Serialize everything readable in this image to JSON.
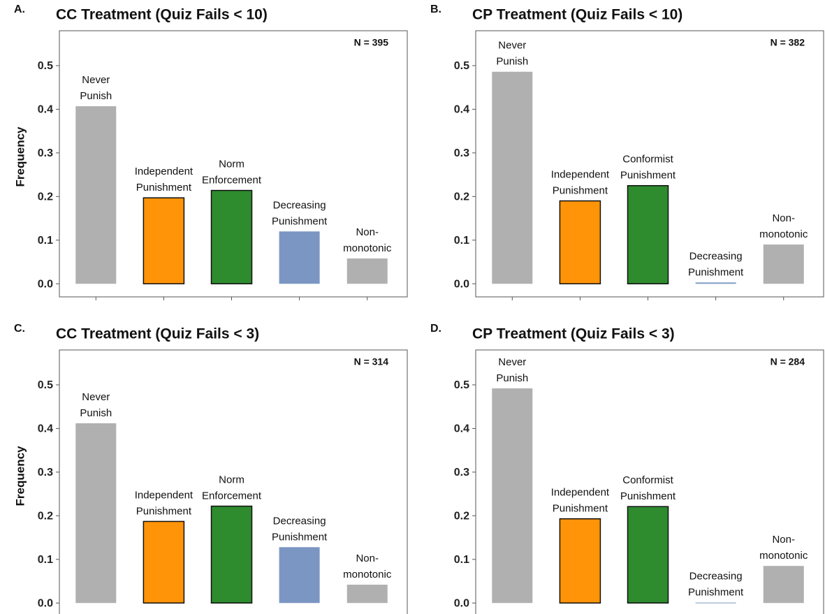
{
  "chart_data": [
    {
      "type": "bar",
      "label": "A.",
      "title": "CC Treatment (Quiz Fails < 10)",
      "annotation": "N = 395",
      "ylabel": "Frequency",
      "categories": [
        [
          "Never",
          "Punish"
        ],
        [
          "Independent",
          "Punishment"
        ],
        [
          "Norm",
          "Enforcement"
        ],
        [
          "Decreasing",
          "Punishment"
        ],
        [
          "Non-",
          "monotonic"
        ]
      ],
      "values": [
        0.407,
        0.197,
        0.214,
        0.12,
        0.058
      ],
      "colors": [
        "#b0b0b0",
        "#ff9408",
        "#2e8b2e",
        "#7b96c2",
        "#b0b0b0"
      ],
      "outlined": [
        false,
        true,
        true,
        false,
        false
      ],
      "ylim": [
        -0.03,
        0.58
      ],
      "yticks": [
        {
          "value": 0,
          "label": "0.0"
        },
        0.1,
        0.2,
        0.3,
        0.4,
        0.5
      ]
    },
    {
      "type": "bar",
      "label": "B.",
      "title": "CP Treatment (Quiz Fails < 10)",
      "annotation": "N = 382",
      "categories": [
        [
          "Never",
          "Punish"
        ],
        [
          "Independent",
          "Punishment"
        ],
        [
          "Conformist",
          "Punishment"
        ],
        [
          "Decreasing",
          "Punishment"
        ],
        [
          "Non-",
          "monotonic"
        ]
      ],
      "values": [
        0.486,
        0.19,
        0.225,
        0.003,
        0.09
      ],
      "colors": [
        "#b0b0b0",
        "#ff9408",
        "#2e8b2e",
        "#7b96c2",
        "#b0b0b0"
      ],
      "outlined": [
        false,
        true,
        true,
        false,
        false
      ],
      "ylim": [
        -0.03,
        0.58
      ],
      "yticks": [
        {
          "value": 0,
          "label": "0.0"
        },
        0.1,
        0.2,
        0.3,
        0.4,
        0.5
      ]
    },
    {
      "type": "bar",
      "label": "C.",
      "title": "CC Treatment (Quiz Fails < 3)",
      "annotation": "N = 314",
      "ylabel": "Frequency",
      "categories": [
        [
          "Never",
          "Punish"
        ],
        [
          "Independent",
          "Punishment"
        ],
        [
          "Norm",
          "Enforcement"
        ],
        [
          "Decreasing",
          "Punishment"
        ],
        [
          "Non-",
          "monotonic"
        ]
      ],
      "values": [
        0.412,
        0.187,
        0.222,
        0.128,
        0.042
      ],
      "colors": [
        "#b0b0b0",
        "#ff9408",
        "#2e8b2e",
        "#7b96c2",
        "#b0b0b0"
      ],
      "outlined": [
        false,
        true,
        true,
        false,
        false
      ],
      "ylim": [
        -0.03,
        0.58
      ],
      "yticks": [
        {
          "value": 0,
          "label": "0.0"
        },
        0.1,
        0.2,
        0.3,
        0.4,
        0.5
      ]
    },
    {
      "type": "bar",
      "label": "D.",
      "title": "CP Treatment (Quiz Fails < 3)",
      "annotation": "N = 284",
      "categories": [
        [
          "Never",
          "Punish"
        ],
        [
          "Independent",
          "Punishment"
        ],
        [
          "Conformist",
          "Punishment"
        ],
        [
          "Decreasing",
          "Punishment"
        ],
        [
          "Non-",
          "monotonic"
        ]
      ],
      "values": [
        0.492,
        0.193,
        0.221,
        0.001,
        0.085
      ],
      "colors": [
        "#b0b0b0",
        "#ff9408",
        "#2e8b2e",
        "#7b96c2",
        "#b0b0b0"
      ],
      "outlined": [
        false,
        true,
        true,
        false,
        false
      ],
      "ylim": [
        -0.03,
        0.58
      ],
      "yticks": [
        {
          "value": 0,
          "label": "0.0"
        },
        0.1,
        0.2,
        0.3,
        0.4,
        0.5
      ]
    }
  ]
}
